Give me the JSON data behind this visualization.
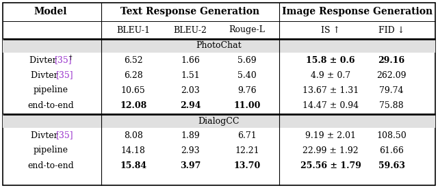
{
  "section1_label": "PhotoChat",
  "section2_label": "DialogCC",
  "rows_photochat": [
    {
      "model_base": "Divter ",
      "model_ref": "[35]",
      "model_sup": "†",
      "bleu1": "6.52",
      "bleu2": "1.66",
      "rougeL": "5.69",
      "IS": "15.8 ± 0.6",
      "FID": "29.16",
      "bold_IS": true,
      "bold_FID": true,
      "bold_bleu1": false,
      "bold_bleu2": false,
      "bold_rougeL": false
    },
    {
      "model_base": "Divter ",
      "model_ref": "[35]",
      "model_sup": "",
      "bleu1": "6.28",
      "bleu2": "1.51",
      "rougeL": "5.40",
      "IS": "4.9 ± 0.7",
      "FID": "262.09",
      "bold_IS": false,
      "bold_FID": false,
      "bold_bleu1": false,
      "bold_bleu2": false,
      "bold_rougeL": false
    },
    {
      "model_base": "pipeline",
      "model_ref": "",
      "model_sup": "",
      "bleu1": "10.65",
      "bleu2": "2.03",
      "rougeL": "9.76",
      "IS": "13.67 ± 1.31",
      "FID": "79.74",
      "bold_IS": false,
      "bold_FID": false,
      "bold_bleu1": false,
      "bold_bleu2": false,
      "bold_rougeL": false
    },
    {
      "model_base": "end-to-end",
      "model_ref": "",
      "model_sup": "",
      "bleu1": "12.08",
      "bleu2": "2.94",
      "rougeL": "11.00",
      "IS": "14.47 ± 0.94",
      "FID": "75.88",
      "bold_IS": false,
      "bold_FID": false,
      "bold_bleu1": true,
      "bold_bleu2": true,
      "bold_rougeL": true
    }
  ],
  "rows_dialogcc": [
    {
      "model_base": "Divter ",
      "model_ref": "[35]",
      "model_sup": "",
      "bleu1": "8.08",
      "bleu2": "1.89",
      "rougeL": "6.71",
      "IS": "9.19 ± 2.01",
      "FID": "108.50",
      "bold_IS": false,
      "bold_FID": false,
      "bold_bleu1": false,
      "bold_bleu2": false,
      "bold_rougeL": false
    },
    {
      "model_base": "pipeline",
      "model_ref": "",
      "model_sup": "",
      "bleu1": "14.18",
      "bleu2": "2.93",
      "rougeL": "12.21",
      "IS": "22.99 ± 1.92",
      "FID": "61.66",
      "bold_IS": false,
      "bold_FID": false,
      "bold_bleu1": false,
      "bold_bleu2": false,
      "bold_rougeL": false
    },
    {
      "model_base": "end-to-end",
      "model_ref": "",
      "model_sup": "",
      "bleu1": "15.84",
      "bleu2": "3.97",
      "rougeL": "13.70",
      "IS": "25.56 ± 1.79",
      "FID": "59.63",
      "bold_IS": true,
      "bold_FID": true,
      "bold_bleu1": true,
      "bold_bleu2": true,
      "bold_rougeL": true
    }
  ],
  "ref_color": "#9933cc",
  "section_bg_color": "#e0e0e0",
  "font_size": 9.0,
  "header_font_size": 10.0,
  "figwidth": 6.4,
  "figheight": 2.75,
  "dpi": 100
}
